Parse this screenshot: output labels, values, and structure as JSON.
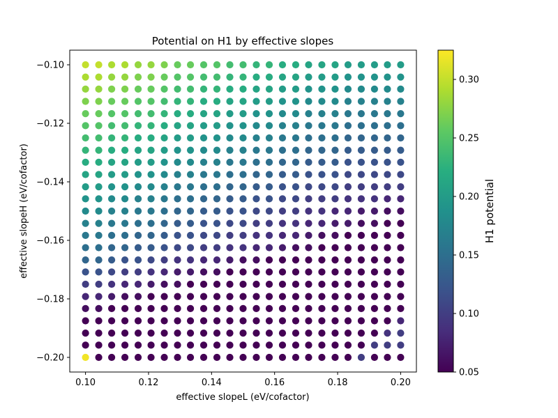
{
  "chart_data": {
    "type": "scatter",
    "title": "Potential on H1 by effective slopes",
    "xlabel": "effective slopeL (eV/cofactor)",
    "ylabel": "effective slopeH (eV/cofactor)",
    "colorbar_label": "H1 potential",
    "colormap": "viridis",
    "xlim": [
      0.095,
      0.205
    ],
    "ylim": [
      -0.205,
      -0.095
    ],
    "clim": [
      0.05,
      0.325
    ],
    "x_ticks": [
      0.1,
      0.12,
      0.14,
      0.16,
      0.18,
      0.2
    ],
    "x_tick_labels": [
      "0.10",
      "0.12",
      "0.14",
      "0.16",
      "0.18",
      "0.20"
    ],
    "y_ticks": [
      -0.1,
      -0.12,
      -0.14,
      -0.16,
      -0.18,
      -0.2
    ],
    "y_tick_labels": [
      "−0.10",
      "−0.12",
      "−0.14",
      "−0.16",
      "−0.18",
      "−0.20"
    ],
    "colorbar_ticks": [
      0.05,
      0.1,
      0.15,
      0.2,
      0.25,
      0.3
    ],
    "colorbar_tick_labels": [
      "0.05",
      "0.10",
      "0.15",
      "0.20",
      "0.25",
      "0.30"
    ],
    "grid": false,
    "x": [
      0.1,
      0.1042,
      0.1083,
      0.1125,
      0.1167,
      0.1208,
      0.125,
      0.1292,
      0.1333,
      0.1375,
      0.1417,
      0.1458,
      0.15,
      0.1542,
      0.1583,
      0.1625,
      0.1667,
      0.1708,
      0.175,
      0.1792,
      0.1833,
      0.1875,
      0.1917,
      0.1958,
      0.2
    ],
    "y": [
      -0.1,
      -0.1042,
      -0.1083,
      -0.1125,
      -0.1167,
      -0.1208,
      -0.125,
      -0.1292,
      -0.1333,
      -0.1375,
      -0.1417,
      -0.1458,
      -0.15,
      -0.1542,
      -0.1583,
      -0.1625,
      -0.1667,
      -0.1708,
      -0.175,
      -0.1792,
      -0.1833,
      -0.1875,
      -0.1917,
      -0.1958,
      -0.2
    ],
    "h1_potential_rows": [
      [
        0.3,
        0.3,
        0.29,
        0.29,
        0.28,
        0.28,
        0.27,
        0.26,
        0.26,
        0.25,
        0.25,
        0.24,
        0.24,
        0.23,
        0.23,
        0.22,
        0.22,
        0.21,
        0.21,
        0.21,
        0.2,
        0.2,
        0.2,
        0.2,
        0.2
      ],
      [
        0.29,
        0.29,
        0.28,
        0.28,
        0.27,
        0.27,
        0.26,
        0.25,
        0.25,
        0.24,
        0.24,
        0.23,
        0.23,
        0.22,
        0.22,
        0.21,
        0.21,
        0.2,
        0.2,
        0.2,
        0.19,
        0.19,
        0.19,
        0.19,
        0.19
      ],
      [
        0.28,
        0.28,
        0.27,
        0.27,
        0.26,
        0.26,
        0.25,
        0.24,
        0.24,
        0.23,
        0.23,
        0.22,
        0.22,
        0.21,
        0.21,
        0.2,
        0.2,
        0.19,
        0.19,
        0.19,
        0.18,
        0.18,
        0.18,
        0.18,
        0.18
      ],
      [
        0.27,
        0.27,
        0.26,
        0.26,
        0.25,
        0.25,
        0.24,
        0.23,
        0.23,
        0.22,
        0.22,
        0.21,
        0.21,
        0.2,
        0.2,
        0.19,
        0.19,
        0.18,
        0.18,
        0.18,
        0.17,
        0.17,
        0.17,
        0.17,
        0.17
      ],
      [
        0.26,
        0.26,
        0.25,
        0.25,
        0.24,
        0.24,
        0.23,
        0.22,
        0.22,
        0.21,
        0.21,
        0.2,
        0.2,
        0.19,
        0.19,
        0.18,
        0.18,
        0.17,
        0.17,
        0.17,
        0.16,
        0.16,
        0.16,
        0.16,
        0.16
      ],
      [
        0.25,
        0.25,
        0.24,
        0.24,
        0.23,
        0.23,
        0.22,
        0.21,
        0.21,
        0.2,
        0.2,
        0.19,
        0.19,
        0.18,
        0.18,
        0.17,
        0.17,
        0.16,
        0.16,
        0.16,
        0.15,
        0.15,
        0.15,
        0.15,
        0.15
      ],
      [
        0.24,
        0.24,
        0.23,
        0.23,
        0.22,
        0.22,
        0.21,
        0.2,
        0.2,
        0.19,
        0.19,
        0.18,
        0.18,
        0.17,
        0.17,
        0.16,
        0.16,
        0.15,
        0.15,
        0.15,
        0.14,
        0.14,
        0.14,
        0.14,
        0.14
      ],
      [
        0.23,
        0.23,
        0.22,
        0.22,
        0.21,
        0.21,
        0.2,
        0.19,
        0.19,
        0.18,
        0.18,
        0.17,
        0.17,
        0.16,
        0.16,
        0.15,
        0.15,
        0.14,
        0.14,
        0.14,
        0.13,
        0.13,
        0.13,
        0.13,
        0.13
      ],
      [
        0.22,
        0.22,
        0.21,
        0.21,
        0.2,
        0.2,
        0.19,
        0.18,
        0.18,
        0.17,
        0.17,
        0.16,
        0.16,
        0.15,
        0.15,
        0.14,
        0.14,
        0.13,
        0.13,
        0.13,
        0.12,
        0.12,
        0.12,
        0.12,
        0.12
      ],
      [
        0.21,
        0.21,
        0.2,
        0.2,
        0.19,
        0.19,
        0.18,
        0.17,
        0.17,
        0.16,
        0.16,
        0.15,
        0.15,
        0.14,
        0.14,
        0.13,
        0.13,
        0.12,
        0.12,
        0.12,
        0.11,
        0.11,
        0.11,
        0.11,
        0.11
      ],
      [
        0.2,
        0.2,
        0.19,
        0.19,
        0.18,
        0.18,
        0.17,
        0.16,
        0.16,
        0.15,
        0.15,
        0.14,
        0.14,
        0.13,
        0.13,
        0.12,
        0.12,
        0.11,
        0.11,
        0.11,
        0.1,
        0.1,
        0.1,
        0.1,
        0.1
      ],
      [
        0.19,
        0.19,
        0.18,
        0.18,
        0.17,
        0.17,
        0.16,
        0.15,
        0.15,
        0.14,
        0.14,
        0.13,
        0.13,
        0.12,
        0.12,
        0.11,
        0.11,
        0.1,
        0.1,
        0.1,
        0.09,
        0.09,
        0.09,
        0.08,
        0.08
      ],
      [
        0.18,
        0.18,
        0.17,
        0.17,
        0.16,
        0.16,
        0.15,
        0.14,
        0.14,
        0.13,
        0.13,
        0.12,
        0.12,
        0.11,
        0.11,
        0.1,
        0.1,
        0.09,
        0.09,
        0.08,
        0.08,
        0.07,
        0.07,
        0.06,
        0.06
      ],
      [
        0.17,
        0.17,
        0.16,
        0.16,
        0.15,
        0.15,
        0.14,
        0.13,
        0.13,
        0.12,
        0.12,
        0.11,
        0.11,
        0.1,
        0.1,
        0.09,
        0.09,
        0.08,
        0.08,
        0.07,
        0.07,
        0.06,
        0.06,
        0.05,
        0.05
      ],
      [
        0.16,
        0.16,
        0.15,
        0.15,
        0.14,
        0.14,
        0.13,
        0.12,
        0.12,
        0.11,
        0.11,
        0.1,
        0.1,
        0.09,
        0.09,
        0.08,
        0.08,
        0.07,
        0.06,
        0.06,
        0.05,
        0.05,
        0.05,
        0.05,
        0.05
      ],
      [
        0.15,
        0.15,
        0.14,
        0.14,
        0.13,
        0.13,
        0.12,
        0.11,
        0.11,
        0.1,
        0.1,
        0.09,
        0.09,
        0.08,
        0.08,
        0.07,
        0.06,
        0.06,
        0.05,
        0.05,
        0.05,
        0.05,
        0.05,
        0.05,
        0.05
      ],
      [
        0.14,
        0.14,
        0.13,
        0.12,
        0.12,
        0.11,
        0.1,
        0.09,
        0.09,
        0.08,
        0.08,
        0.07,
        0.06,
        0.06,
        0.05,
        0.05,
        0.05,
        0.05,
        0.05,
        0.05,
        0.05,
        0.05,
        0.05,
        0.05,
        0.05
      ],
      [
        0.12,
        0.12,
        0.11,
        0.1,
        0.1,
        0.09,
        0.08,
        0.07,
        0.07,
        0.06,
        0.06,
        0.05,
        0.05,
        0.05,
        0.05,
        0.05,
        0.05,
        0.05,
        0.05,
        0.05,
        0.05,
        0.05,
        0.05,
        0.05,
        0.05
      ],
      [
        0.1,
        0.1,
        0.09,
        0.08,
        0.08,
        0.07,
        0.06,
        0.06,
        0.05,
        0.05,
        0.05,
        0.05,
        0.05,
        0.05,
        0.05,
        0.05,
        0.05,
        0.05,
        0.05,
        0.05,
        0.05,
        0.05,
        0.05,
        0.05,
        0.05
      ],
      [
        0.08,
        0.08,
        0.07,
        0.06,
        0.06,
        0.05,
        0.05,
        0.05,
        0.05,
        0.05,
        0.05,
        0.05,
        0.05,
        0.05,
        0.05,
        0.05,
        0.05,
        0.05,
        0.05,
        0.05,
        0.05,
        0.05,
        0.05,
        0.05,
        0.05
      ],
      [
        0.06,
        0.06,
        0.05,
        0.05,
        0.05,
        0.05,
        0.05,
        0.05,
        0.05,
        0.05,
        0.05,
        0.05,
        0.05,
        0.05,
        0.05,
        0.05,
        0.05,
        0.05,
        0.05,
        0.05,
        0.05,
        0.05,
        0.05,
        0.05,
        0.05
      ],
      [
        0.05,
        0.05,
        0.05,
        0.05,
        0.05,
        0.05,
        0.05,
        0.05,
        0.05,
        0.05,
        0.05,
        0.05,
        0.05,
        0.05,
        0.05,
        0.05,
        0.05,
        0.05,
        0.05,
        0.05,
        0.05,
        0.05,
        0.05,
        0.05,
        0.08
      ],
      [
        0.05,
        0.05,
        0.05,
        0.05,
        0.05,
        0.05,
        0.05,
        0.05,
        0.05,
        0.05,
        0.05,
        0.05,
        0.05,
        0.05,
        0.05,
        0.05,
        0.05,
        0.05,
        0.05,
        0.05,
        0.05,
        0.05,
        0.05,
        0.09,
        0.1
      ],
      [
        0.05,
        0.05,
        0.05,
        0.05,
        0.05,
        0.05,
        0.05,
        0.05,
        0.05,
        0.05,
        0.05,
        0.05,
        0.05,
        0.05,
        0.05,
        0.05,
        0.05,
        0.05,
        0.05,
        0.05,
        0.05,
        0.05,
        0.1,
        0.1,
        0.1
      ],
      [
        0.32,
        0.05,
        0.05,
        0.05,
        0.05,
        0.05,
        0.05,
        0.05,
        0.05,
        0.05,
        0.05,
        0.05,
        0.05,
        0.05,
        0.05,
        0.05,
        0.05,
        0.05,
        0.05,
        0.05,
        0.05,
        0.1,
        0.05,
        0.05,
        0.05
      ]
    ]
  }
}
